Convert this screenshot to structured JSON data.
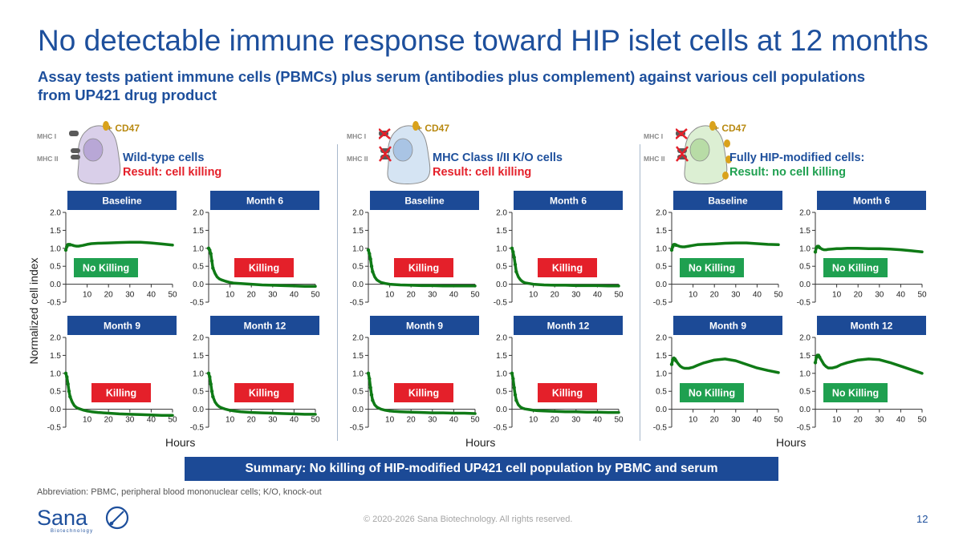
{
  "title": "No detectable immune response toward HIP islet cells at 12 months",
  "subtitle": "Assay tests patient immune cells (PBMCs) plus serum (antibodies plus complement) against various cell populations from UP421 drug product",
  "colors": {
    "brand_blue": "#1d4f9c",
    "header_blue": "#1c4a96",
    "kill_red": "#e4202a",
    "nokill_green": "#1fa050",
    "curve_green": "#0f7a16",
    "cd47_gold": "#b98a12"
  },
  "groups": [
    {
      "name": "Wild-type cells",
      "result": "Result: cell killing",
      "result_color": "#e4202a",
      "mhc1": "MHC I",
      "mhc2": "MHC II",
      "cd47": "+ CD47",
      "cell_color": "#d9cfe9",
      "nucleus_color": "#b8a7d6",
      "mhc_knocked_out": false,
      "has_cd47": false
    },
    {
      "name": "MHC Class I/II K/O cells",
      "result": "Result: cell killing",
      "result_color": "#e4202a",
      "mhc1": "MHC I",
      "mhc2": "MHC II",
      "cd47": "+ CD47",
      "cell_color": "#d5e4f3",
      "nucleus_color": "#a9c4e4",
      "mhc_knocked_out": true,
      "has_cd47": false
    },
    {
      "name": "Fully HIP-modified cells:",
      "result": "Result: no cell killing",
      "result_color": "#1fa050",
      "mhc1": "MHC I",
      "mhc2": "MHC II",
      "cd47": "+ CD47",
      "cell_color": "#dcefd3",
      "nucleus_color": "#b8dca6",
      "mhc_knocked_out": true,
      "has_cd47": true
    }
  ],
  "y_axis_label": "Normalized cell index",
  "x_axis_label": "Hours",
  "chart_data": {
    "type": "line",
    "xlim": [
      0,
      50
    ],
    "ylim": [
      -0.5,
      2.0
    ],
    "x_ticks": [
      10,
      20,
      30,
      40,
      50
    ],
    "y_ticks": [
      "2.0",
      "1.5",
      "1.0",
      "0.5",
      "0.0",
      "-0.5"
    ],
    "x": [
      0,
      0.5,
      1,
      1.5,
      2,
      3,
      4,
      5,
      6,
      8,
      10,
      12,
      15,
      20,
      25,
      30,
      35,
      40,
      45,
      50
    ],
    "panels": [
      {
        "group": 0,
        "title": "Baseline",
        "label": "No Killing",
        "outcome": "no_killing",
        "y": [
          0.95,
          1.05,
          1.1,
          1.1,
          1.1,
          1.09,
          1.07,
          1.06,
          1.06,
          1.08,
          1.11,
          1.13,
          1.14,
          1.15,
          1.16,
          1.17,
          1.17,
          1.15,
          1.12,
          1.09
        ]
      },
      {
        "group": 0,
        "title": "Month 6",
        "label": "Killing",
        "outcome": "killing",
        "y": [
          1.0,
          0.95,
          0.85,
          0.65,
          0.45,
          0.3,
          0.2,
          0.15,
          0.12,
          0.08,
          0.05,
          0.03,
          0.02,
          0.0,
          -0.02,
          -0.03,
          -0.04,
          -0.05,
          -0.06,
          -0.06
        ]
      },
      {
        "group": 1,
        "title": "Baseline",
        "label": "Killing",
        "outcome": "killing",
        "y": [
          0.95,
          0.85,
          0.7,
          0.5,
          0.35,
          0.2,
          0.12,
          0.08,
          0.05,
          0.02,
          0.0,
          -0.01,
          -0.02,
          -0.03,
          -0.04,
          -0.04,
          -0.05,
          -0.05,
          -0.05,
          -0.05
        ]
      },
      {
        "group": 1,
        "title": "Month 6",
        "label": "Killing",
        "outcome": "killing",
        "y": [
          1.0,
          0.9,
          0.75,
          0.55,
          0.35,
          0.2,
          0.12,
          0.07,
          0.04,
          0.02,
          0.0,
          -0.01,
          -0.02,
          -0.03,
          -0.03,
          -0.04,
          -0.04,
          -0.04,
          -0.05,
          -0.05
        ]
      },
      {
        "group": 2,
        "title": "Baseline",
        "label": "No Killing",
        "outcome": "no_killing",
        "y": [
          0.95,
          1.05,
          1.1,
          1.1,
          1.09,
          1.07,
          1.05,
          1.04,
          1.04,
          1.06,
          1.08,
          1.1,
          1.11,
          1.12,
          1.14,
          1.15,
          1.15,
          1.13,
          1.11,
          1.1
        ]
      },
      {
        "group": 2,
        "title": "Month 6",
        "label": "No Killing",
        "outcome": "no_killing",
        "y": [
          0.9,
          1.02,
          1.05,
          1.05,
          1.02,
          0.98,
          0.96,
          0.96,
          0.97,
          0.98,
          0.99,
          0.99,
          1.0,
          1.0,
          0.99,
          0.99,
          0.98,
          0.96,
          0.93,
          0.9
        ]
      },
      {
        "group": 0,
        "title": "Month 9",
        "label": "Killing",
        "outcome": "killing",
        "y": [
          1.0,
          0.9,
          0.7,
          0.5,
          0.35,
          0.2,
          0.1,
          0.05,
          0.02,
          -0.02,
          -0.05,
          -0.07,
          -0.09,
          -0.11,
          -0.13,
          -0.14,
          -0.15,
          -0.16,
          -0.17,
          -0.17
        ]
      },
      {
        "group": 0,
        "title": "Month 12",
        "label": "Killing",
        "outcome": "killing",
        "y": [
          1.0,
          0.9,
          0.7,
          0.5,
          0.35,
          0.2,
          0.12,
          0.07,
          0.04,
          0.0,
          -0.03,
          -0.05,
          -0.07,
          -0.09,
          -0.1,
          -0.11,
          -0.12,
          -0.13,
          -0.14,
          -0.14
        ]
      },
      {
        "group": 1,
        "title": "Month 9",
        "label": "Killing",
        "outcome": "killing",
        "y": [
          1.0,
          0.85,
          0.6,
          0.4,
          0.25,
          0.12,
          0.06,
          0.03,
          0.0,
          -0.03,
          -0.05,
          -0.06,
          -0.07,
          -0.08,
          -0.09,
          -0.1,
          -0.1,
          -0.11,
          -0.11,
          -0.12
        ]
      },
      {
        "group": 1,
        "title": "Month 12",
        "label": "Killing",
        "outcome": "killing",
        "y": [
          1.0,
          0.85,
          0.6,
          0.4,
          0.25,
          0.12,
          0.06,
          0.03,
          0.01,
          -0.01,
          -0.03,
          -0.04,
          -0.05,
          -0.06,
          -0.07,
          -0.07,
          -0.08,
          -0.08,
          -0.09,
          -0.09
        ]
      },
      {
        "group": 2,
        "title": "Month 9",
        "label": "No Killing",
        "outcome": "no_killing",
        "y": [
          1.25,
          1.38,
          1.42,
          1.4,
          1.35,
          1.27,
          1.2,
          1.16,
          1.14,
          1.14,
          1.17,
          1.22,
          1.29,
          1.37,
          1.4,
          1.35,
          1.25,
          1.15,
          1.08,
          1.02
        ]
      },
      {
        "group": 2,
        "title": "Month 12",
        "label": "No Killing",
        "outcome": "no_killing",
        "y": [
          1.3,
          1.45,
          1.5,
          1.5,
          1.45,
          1.35,
          1.25,
          1.19,
          1.15,
          1.15,
          1.18,
          1.24,
          1.3,
          1.37,
          1.4,
          1.38,
          1.3,
          1.2,
          1.1,
          1.0
        ]
      }
    ]
  },
  "summary": "Summary:  No killing of HIP-modified UP421 cell population by PBMC and serum",
  "abbreviation": "Abbreviation: PBMC, peripheral blood mononuclear cells; K/O, knock-out",
  "logo": {
    "name": "Sana",
    "tagline": "Biotechnology"
  },
  "copyright": "© 2020-2026 Sana Biotechnology. All rights reserved.",
  "page_number": "12"
}
